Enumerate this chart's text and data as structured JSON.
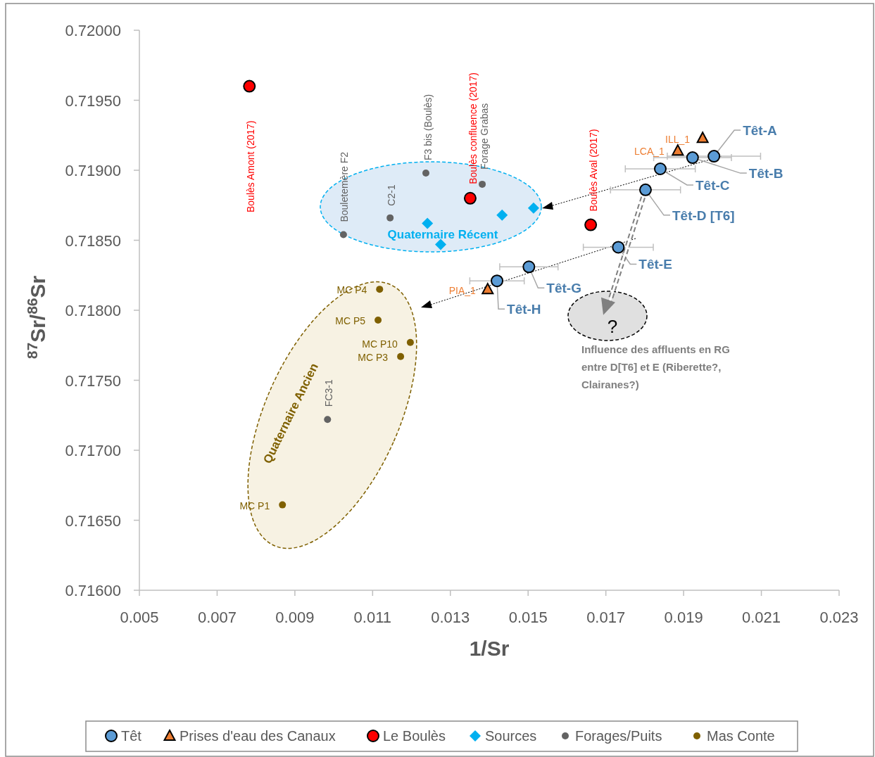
{
  "chart_data": {
    "type": "scatter",
    "xlabel": "1/Sr",
    "ylabel": "$^{87}$Sr/$^{86}$Sr",
    "xlim": [
      0.005,
      0.023
    ],
    "xticks": [
      0.005,
      0.007,
      0.009,
      0.011,
      0.013,
      0.015,
      0.017,
      0.019,
      0.021,
      0.023
    ],
    "ylim": [
      0.716,
      0.72
    ],
    "yticks": [
      {
        "value": 0.716,
        "label": "0.71600"
      },
      {
        "value": 0.7165,
        "label": "0.71650"
      },
      {
        "value": 0.717,
        "label": "0.71700"
      },
      {
        "value": 0.7175,
        "label": "0.71750"
      },
      {
        "value": 0.718,
        "label": "0.71800"
      },
      {
        "value": 0.7185,
        "label": "0.71850"
      },
      {
        "value": 0.719,
        "label": "0.71900"
      },
      {
        "value": 0.7195,
        "label": "0.71950"
      },
      {
        "value": 0.72,
        "label": "0.72000"
      }
    ],
    "grid": false,
    "legend": "bottom",
    "series": [
      {
        "name": "Têt",
        "color": "#5b9bd5",
        "marker": "circle",
        "x": [
          0.01978,
          0.01923,
          0.0184,
          0.01802,
          0.01732,
          0.01502,
          0.0142
        ],
        "values": [
          0.7191,
          0.71909,
          0.71901,
          0.71886,
          0.71845,
          0.71831,
          0.71821
        ],
        "xerrors": [
          0.0012,
          0.001,
          0.0009,
          0.0009,
          0.0009,
          0.00075,
          0.0007
        ]
      },
      {
        "name": "Prises d'eau des Canaux",
        "color": "#ed7d31",
        "marker": "triangle",
        "x": [
          0.01949,
          0.01885,
          0.01396
        ],
        "values": [
          0.71923,
          0.71914,
          0.71815
        ]
      },
      {
        "name": "Le Boulès",
        "color": "#ff0000",
        "marker": "circle",
        "x": [
          0.00783,
          0.01351,
          0.01661
        ],
        "values": [
          0.7196,
          0.7188,
          0.71861
        ]
      },
      {
        "name": "Sources",
        "color": "#00b0f0",
        "marker": "diamond",
        "x": [
          0.01241,
          0.01275,
          0.01433,
          0.01514
        ],
        "values": [
          0.71862,
          0.71847,
          0.71868,
          0.71873
        ]
      },
      {
        "name": "Forages/Puits",
        "color": "#636363",
        "marker": "circle",
        "x": [
          0.01025,
          0.01145,
          0.01237,
          0.01382,
          0.00984
        ],
        "values": [
          0.71854,
          0.71866,
          0.71898,
          0.7189,
          0.71722
        ]
      },
      {
        "name": "Mas Conte",
        "color": "#7f6000",
        "marker": "circle",
        "x": [
          0.01118,
          0.01114,
          0.01197,
          0.01172,
          0.00868
        ],
        "values": [
          0.71815,
          0.71793,
          0.71777,
          0.71767,
          0.71661
        ]
      }
    ],
    "annotations": [
      {
        "text": "Têt-A",
        "x": 0.01978,
        "y": 0.7191
      },
      {
        "text": "Têt-B",
        "x": 0.01923,
        "y": 0.71909
      },
      {
        "text": "Têt-C",
        "x": 0.0184,
        "y": 0.71901
      },
      {
        "text": "Têt-D [T6]",
        "x": 0.01802,
        "y": 0.71886
      },
      {
        "text": "Têt-E",
        "x": 0.01732,
        "y": 0.71845
      },
      {
        "text": "Têt-G",
        "x": 0.01502,
        "y": 0.71831
      },
      {
        "text": "Têt-H",
        "x": 0.0142,
        "y": 0.71821
      },
      {
        "text": "ILL_1",
        "x": 0.01949,
        "y": 0.71923
      },
      {
        "text": "LCA_1",
        "x": 0.01885,
        "y": 0.71914
      },
      {
        "text": "PIA_1",
        "x": 0.01396,
        "y": 0.71815
      },
      "Boulès Amont (2017)",
      {
        "text": "Boulès confluence (2017)",
        "x": 0.01351,
        "y": 0.7188
      },
      {
        "text": "Boulès Aval (2017)",
        "x": 0.01661,
        "y": 0.71861
      },
      {
        "text": "Bouletemère F2",
        "x": 0.01025,
        "y": 0.71854
      },
      {
        "text": "C2-1",
        "x": 0.01145,
        "y": 0.71866
      },
      {
        "text": "F3 bis (Boulès)",
        "x": 0.01237,
        "y": 0.71898
      },
      {
        "text": "Forage Grabas",
        "x": 0.01382,
        "y": 0.7189
      },
      {
        "text": "FC3-1",
        "x": 0.00984,
        "y": 0.71722
      },
      {
        "text": "MC P4",
        "x": 0.01118,
        "y": 0.71815
      },
      {
        "text": "MC P5",
        "x": 0.01114,
        "y": 0.71793
      },
      {
        "text": "MC P10",
        "x": 0.01197,
        "y": 0.71777
      },
      {
        "text": "MC P3",
        "x": 0.01172,
        "y": 0.71767
      },
      {
        "text": "MC P1",
        "x": 0.00868,
        "y": 0.71661
      },
      "Quaternaire Récent",
      "Quaternaire Ancien",
      {
        "text": "?",
        "x": 0.01802,
        "y": 0.71886
      },
      "Influence des affluents en RG entre D[T6] et E (Riberette?, Clairanes?)"
    ]
  }
}
